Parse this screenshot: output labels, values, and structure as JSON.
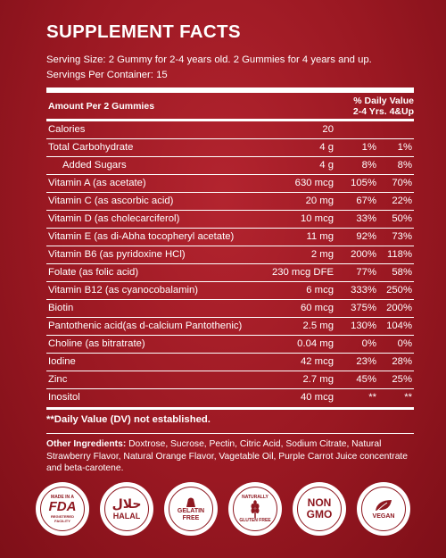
{
  "title": "SUPPLEMENT FACTS",
  "serving_size": "Serving Size: 2 Gummy for 2-4 years old. 2 Gummies for 4 years and up.",
  "servings_per_container": "Servings Per Container: 15",
  "header": {
    "amount_label": "Amount Per 2 Gummies",
    "dv_label_line1": "% Daily Value",
    "dv_label_line2": "2-4 Yrs. 4&Up"
  },
  "rows": [
    {
      "name": "Calories",
      "amount": "20",
      "dv1": "",
      "dv2": ""
    },
    {
      "name": "Total Carbohydrate",
      "amount": "4 g",
      "dv1": "1%",
      "dv2": "1%"
    },
    {
      "name": "Added Sugars",
      "amount": "4 g",
      "dv1": "8%",
      "dv2": "8%"
    },
    {
      "name": "Vitamin A (as acetate)",
      "amount": "630 mcg",
      "dv1": "105%",
      "dv2": "70%"
    },
    {
      "name": "Vitamin C (as ascorbic acid)",
      "amount": "20 mg",
      "dv1": "67%",
      "dv2": "22%"
    },
    {
      "name": "Vitamin D (as cholecarciferol)",
      "amount": "10 mcg",
      "dv1": "33%",
      "dv2": "50%"
    },
    {
      "name": "Vitamin E (as di-Abha tocopheryl acetate)",
      "amount": "11 mg",
      "dv1": "92%",
      "dv2": "73%"
    },
    {
      "name": "Vitamin B6 (as pyridoxine HCl)",
      "amount": "2 mg",
      "dv1": "200%",
      "dv2": "118%"
    },
    {
      "name": "Folate (as folic acid)",
      "amount": "230 mcg DFE",
      "dv1": "77%",
      "dv2": "58%"
    },
    {
      "name": "Vitamin B12 (as cyanocobalamin)",
      "amount": "6 mcg",
      "dv1": "333%",
      "dv2": "250%"
    },
    {
      "name": "Biotin",
      "amount": "60 mcg",
      "dv1": "375%",
      "dv2": "200%"
    },
    {
      "name": "Pantothenic acid(as d-calcium Pantothenic)",
      "amount": "2.5 mg",
      "dv1": "130%",
      "dv2": "104%"
    },
    {
      "name": "Choline (as bitratrate)",
      "amount": "0.04 mg",
      "dv1": "0%",
      "dv2": "0%"
    },
    {
      "name": "Iodine",
      "amount": "42 mcg",
      "dv1": "23%",
      "dv2": "28%"
    },
    {
      "name": "Zinc",
      "amount": "2.7 mg",
      "dv1": "45%",
      "dv2": "25%"
    },
    {
      "name": "Inositol",
      "amount": "40 mcg",
      "dv1": "**",
      "dv2": "**"
    }
  ],
  "dv_note": "**Daily Value (DV) not established.",
  "ingredients": {
    "label": "Other Ingredients:",
    "text": " Doxtrose, Sucrose, Pectin, Citric Acid, Sodium Citrate, Natural Strawberry Flavor, Natural Orange Flavor, Vagetable Oil, Purple Carrot Juice concentrate and beta-carotene."
  },
  "badges": {
    "fda": {
      "top": "MADE IN A",
      "main": "FDA",
      "bottom": "REGISTERED FACILITY",
      "icon": "fda-icon"
    },
    "halal": {
      "arabic": "حلال",
      "main": "HALAL",
      "icon": "halal-icon"
    },
    "gelatin": {
      "line1": "GELATIN",
      "line2": "FREE",
      "icon": "gelatin-free-icon"
    },
    "gluten": {
      "top": "NATURALLY",
      "bottom": "GLUTEN FREE",
      "icon": "wheat-icon"
    },
    "nongmo": {
      "line1": "NON",
      "line2": "GMO",
      "icon": "non-gmo-icon"
    },
    "vegan": {
      "main": "VEGAN",
      "icon": "leaf-icon"
    }
  },
  "colors": {
    "background": "#9a1822",
    "accent": "#8e1820",
    "text": "#ffffff"
  }
}
